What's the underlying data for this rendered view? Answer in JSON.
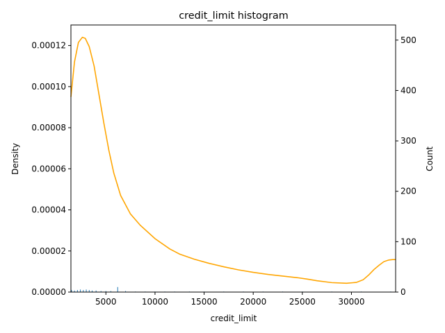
{
  "chart_data": {
    "type": "histogram",
    "title": "credit_limit histogram",
    "xlabel": "credit_limit",
    "ylabel_left": "Density",
    "ylabel_right": "Count",
    "xlim": [
      1438,
      34500
    ],
    "ylim_left": [
      0,
      0.00013
    ],
    "ylim_right": [
      0,
      530
    ],
    "x_ticks": [
      5000,
      10000,
      15000,
      20000,
      25000,
      30000
    ],
    "y_left_ticks": [
      "0.00000",
      "0.00002",
      "0.00004",
      "0.00006",
      "0.00008",
      "0.00010",
      "0.00012"
    ],
    "y_right_ticks": [
      0,
      100,
      200,
      300,
      400,
      500
    ],
    "grid": false,
    "colors": {
      "histogram": "#1f77b4",
      "kde": "#ffa500"
    },
    "histogram_counts": [
      {
        "x": 1500,
        "count": 4
      },
      {
        "x": 1800,
        "count": 3
      },
      {
        "x": 2100,
        "count": 4
      },
      {
        "x": 2400,
        "count": 5
      },
      {
        "x": 2700,
        "count": 4
      },
      {
        "x": 3000,
        "count": 5
      },
      {
        "x": 3300,
        "count": 4
      },
      {
        "x": 3600,
        "count": 3
      },
      {
        "x": 4000,
        "count": 3
      },
      {
        "x": 4500,
        "count": 2
      },
      {
        "x": 5000,
        "count": 2
      },
      {
        "x": 5500,
        "count": 2
      },
      {
        "x": 6200,
        "count": 10
      },
      {
        "x": 7000,
        "count": 2
      },
      {
        "x": 8000,
        "count": 1
      },
      {
        "x": 9000,
        "count": 1
      },
      {
        "x": 10000,
        "count": 1
      },
      {
        "x": 11000,
        "count": 1
      },
      {
        "x": 12000,
        "count": 1
      },
      {
        "x": 13500,
        "count": 1
      },
      {
        "x": 15000,
        "count": 1
      },
      {
        "x": 17000,
        "count": 1
      },
      {
        "x": 19000,
        "count": 1
      },
      {
        "x": 21000,
        "count": 1
      },
      {
        "x": 23000,
        "count": 1
      },
      {
        "x": 25000,
        "count": 1
      },
      {
        "x": 28000,
        "count": 1
      },
      {
        "x": 31000,
        "count": 1
      },
      {
        "x": 34000,
        "count": 1
      }
    ],
    "kde": {
      "x": [
        1438,
        1800,
        2200,
        2600,
        2900,
        3300,
        3800,
        4300,
        4800,
        5300,
        5800,
        6500,
        7500,
        8500,
        10000,
        11500,
        12500,
        14000,
        15500,
        17000,
        18500,
        20000,
        21500,
        23000,
        24500,
        25500,
        26500,
        28000,
        29500,
        30500,
        31200,
        31800,
        32300,
        32800,
        33300,
        33800,
        34200,
        34500
      ],
      "y": [
        9.5e-05,
        0.000112,
        0.0001215,
        0.000124,
        0.0001235,
        0.0001195,
        0.00011,
        9.6e-05,
        8.2e-05,
        6.9e-05,
        5.8e-05,
        4.7e-05,
        3.8e-05,
        3.25e-05,
        2.6e-05,
        2.1e-05,
        1.85e-05,
        1.6e-05,
        1.4e-05,
        1.23e-05,
        1.08e-05,
        9.6e-06,
        8.6e-06,
        7.8e-06,
        7e-06,
        6.3e-06,
        5.5e-06,
        4.6e-06,
        4.3e-06,
        4.7e-06,
        6e-06,
        8.5e-06,
        1.1e-05,
        1.3e-05,
        1.48e-05,
        1.56e-05,
        1.58e-05,
        1.58e-05
      ]
    }
  }
}
